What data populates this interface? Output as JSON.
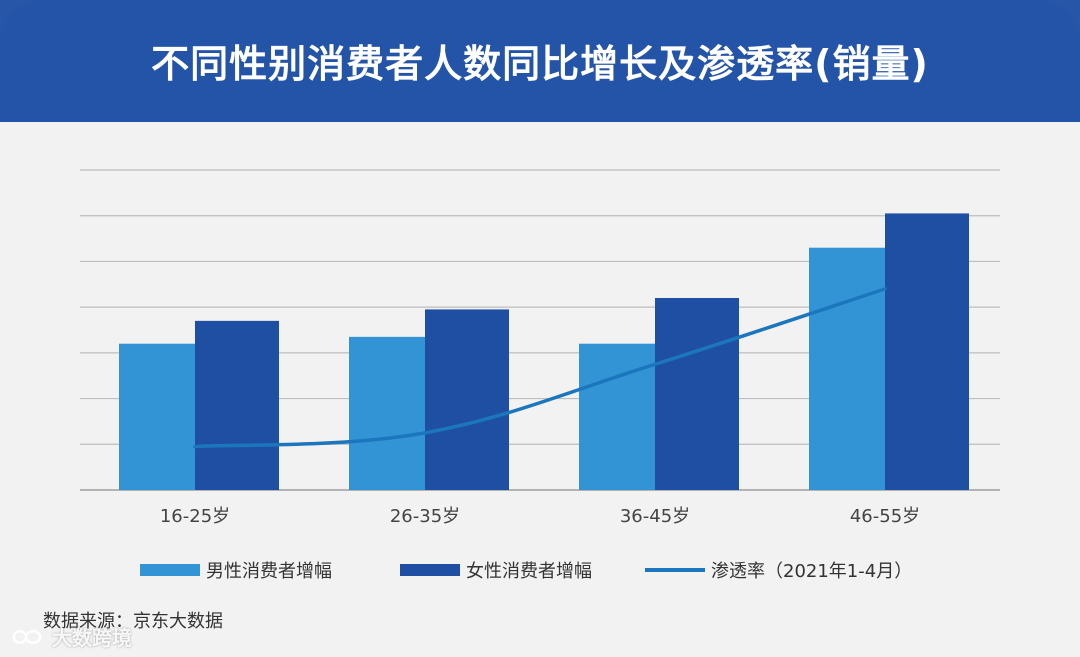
{
  "header": {
    "title": "不同性别消费者人数同比增长及渗透率(销量)"
  },
  "source": "数据来源：京东大数据",
  "watermark": {
    "text": "大数跨境"
  },
  "colors": {
    "male": "#3394d5",
    "female": "#1e4fa3",
    "line": "#1c76bd",
    "grid": "#bdbdbd",
    "header_bg": "#2454a7"
  },
  "legend": [
    {
      "label": "男性消费者增幅",
      "kind": "bar",
      "series": "male"
    },
    {
      "label": "女性消费者增幅",
      "kind": "bar",
      "series": "female"
    },
    {
      "label": "渗透率（2021年1-4月）",
      "kind": "line",
      "series": "line"
    }
  ],
  "chart_data": {
    "type": "bar",
    "categories": [
      "16-25岁",
      "26-35岁",
      "36-45岁",
      "46-55岁"
    ],
    "series": [
      {
        "name": "男性消费者增幅",
        "type": "bar",
        "values": [
          3.2,
          3.35,
          3.2,
          5.3
        ]
      },
      {
        "name": "女性消费者增幅",
        "type": "bar",
        "values": [
          3.7,
          3.95,
          4.2,
          6.05
        ]
      },
      {
        "name": "渗透率（2021年1-4月）",
        "type": "line",
        "values": [
          0.95,
          1.25,
          2.75,
          4.4
        ]
      }
    ],
    "ylim": [
      0,
      7
    ],
    "y_ticks_shown": false,
    "grid": true,
    "legend_position": "bottom"
  }
}
